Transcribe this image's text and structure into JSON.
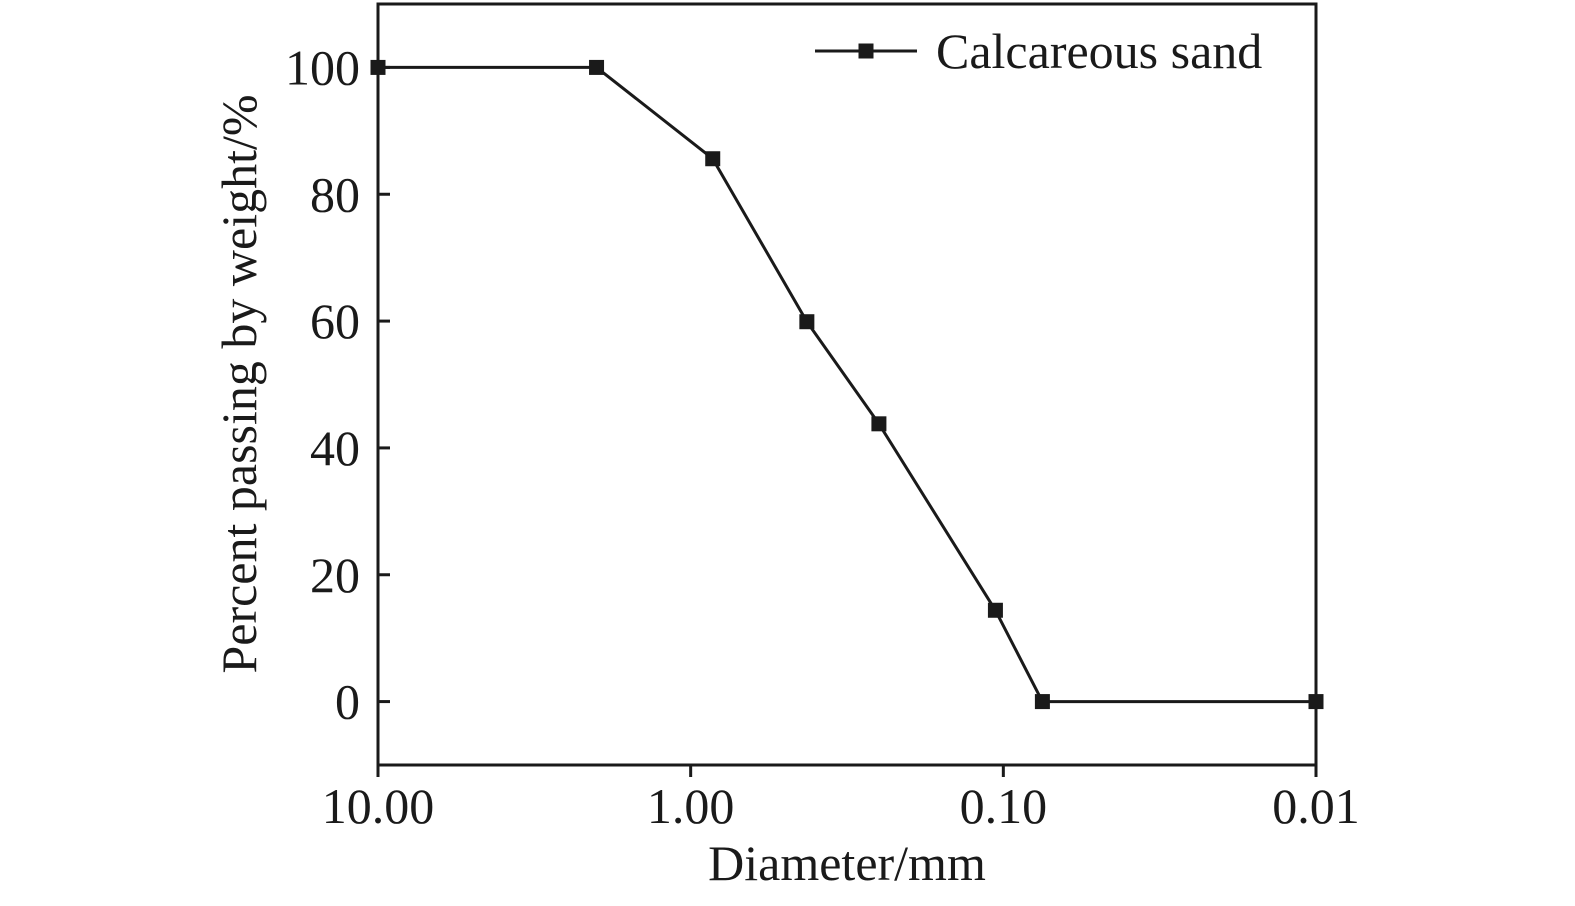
{
  "chart_data": {
    "type": "line",
    "title": "",
    "xlabel": "Diameter/mm",
    "ylabel": "Percent passing by weight/%",
    "x_scale": "log",
    "x_reversed": true,
    "xlim": [
      10,
      0.01
    ],
    "ylim": [
      -10,
      110
    ],
    "x_ticks": [
      10,
      1,
      0.1,
      0.01
    ],
    "x_tick_labels": [
      "10.00",
      "1.00",
      "0.10",
      "0.01"
    ],
    "y_ticks": [
      0,
      20,
      40,
      60,
      80,
      100
    ],
    "y_tick_labels": [
      "0",
      "20",
      "40",
      "60",
      "80",
      "100"
    ],
    "grid": false,
    "legend_position": "top-right",
    "series": [
      {
        "name": "Calcareous sand",
        "color": "#1a1a1a",
        "marker": "square",
        "x": [
          10,
          2,
          0.85,
          0.425,
          0.25,
          0.106,
          0.075,
          0.01
        ],
        "y": [
          100,
          100,
          85.6,
          59.9,
          43.8,
          14.4,
          0,
          0
        ]
      }
    ]
  }
}
